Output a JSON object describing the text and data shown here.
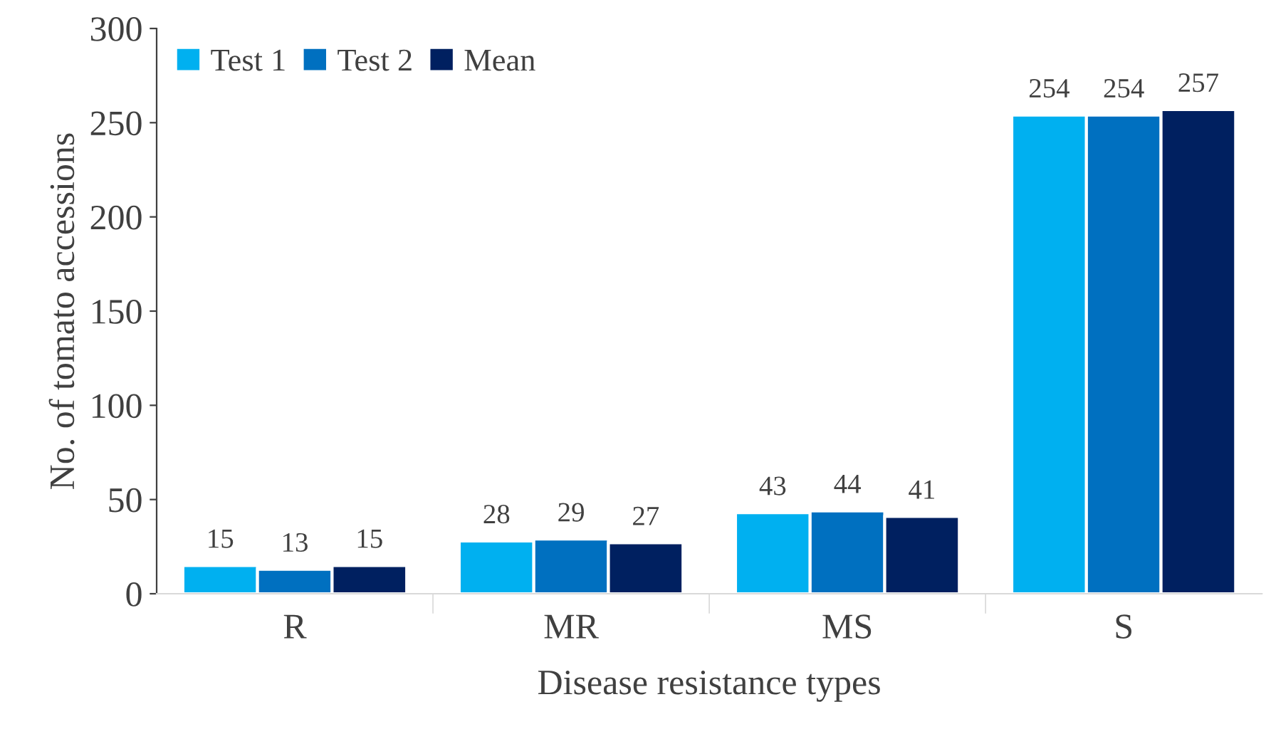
{
  "chart_data": {
    "type": "bar",
    "xlabel": "Disease resistance types",
    "ylabel": "No. of tomato accessions",
    "categories": [
      "R",
      "MR",
      "MS",
      "S"
    ],
    "series": [
      {
        "name": "Test 1",
        "color": "#00b0f0",
        "values": [
          15,
          28,
          43,
          254
        ]
      },
      {
        "name": "Test 2",
        "color": "#0070c0",
        "values": [
          13,
          29,
          44,
          254
        ]
      },
      {
        "name": "Mean",
        "color": "#002060",
        "values": [
          15,
          27,
          41,
          257
        ]
      }
    ],
    "ylim": [
      0,
      300
    ],
    "yticks": [
      0,
      50,
      100,
      150,
      200,
      250,
      300
    ],
    "grid": false,
    "legend": "top left",
    "data_labels": true
  }
}
